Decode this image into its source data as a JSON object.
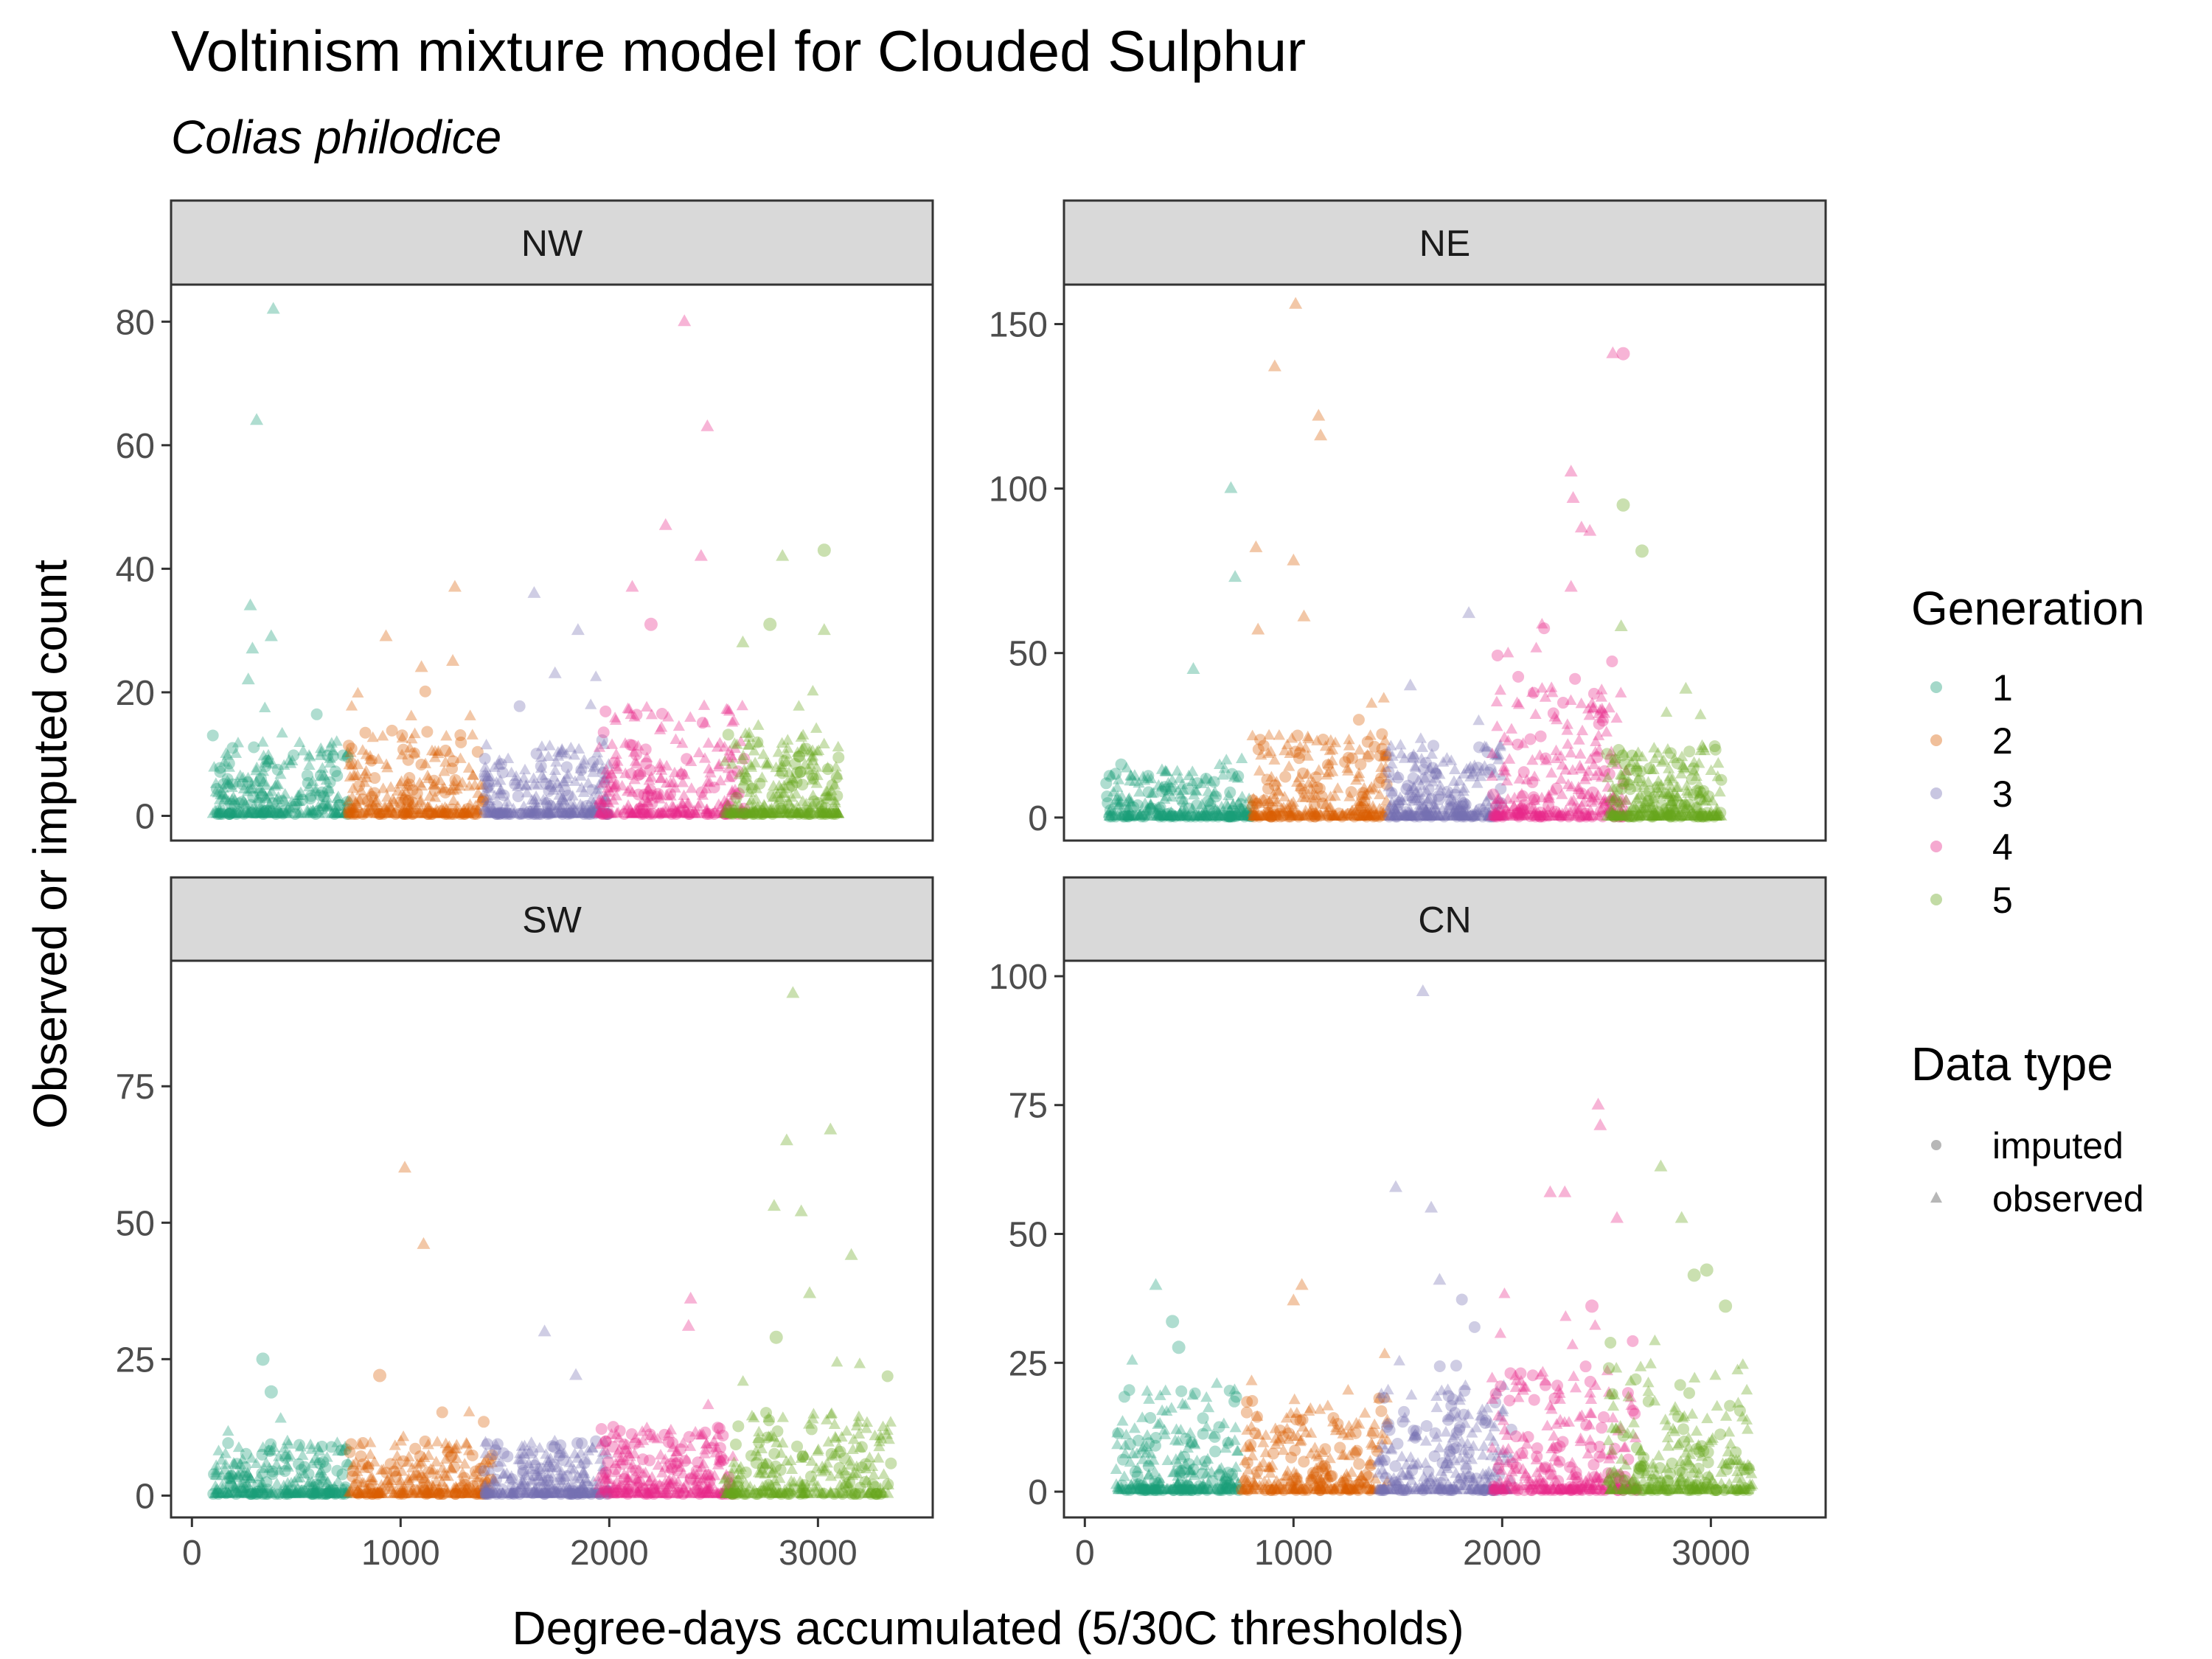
{
  "chart_data": {
    "type": "scatter",
    "title": "Voltinism mixture model for Clouded Sulphur",
    "subtitle": "Colias philodice",
    "xlabel": "Degree-days accumulated (5/30C thresholds)",
    "ylabel": "Observed or imputed count",
    "xlim": [
      -100,
      3550
    ],
    "x_ticks": [
      0,
      1000,
      2000,
      3000
    ],
    "x_tick_labels": [
      "0",
      "1000",
      "2000",
      "3000"
    ],
    "grid": false,
    "legends": {
      "color": {
        "title": "Generation",
        "entries": [
          {
            "label": "1",
            "color": "#1b9e77"
          },
          {
            "label": "2",
            "color": "#d95f02"
          },
          {
            "label": "3",
            "color": "#7570b3"
          },
          {
            "label": "4",
            "color": "#e7298a"
          },
          {
            "label": "5",
            "color": "#66a61e"
          }
        ]
      },
      "shape": {
        "title": "Data type",
        "entries": [
          {
            "label": "imputed",
            "shape": "circle",
            "color": "#999999"
          },
          {
            "label": "observed",
            "shape": "triangle",
            "color": "#999999"
          }
        ]
      },
      "position": "right"
    },
    "panels": [
      {
        "label": "NW",
        "ylim": [
          -4,
          86
        ],
        "y_ticks": [
          0,
          20,
          40,
          60,
          80
        ],
        "y_tick_labels": [
          "0",
          "20",
          "40",
          "60",
          "80"
        ],
        "generations": [
          {
            "gen": 1,
            "x_range": [
              100,
              750
            ],
            "typical_max": 12
          },
          {
            "gen": 2,
            "x_range": [
              750,
              1400
            ],
            "typical_max": 14
          },
          {
            "gen": 3,
            "x_range": [
              1400,
              2000
            ],
            "typical_max": 12
          },
          {
            "gen": 4,
            "x_range": [
              1950,
              2650
            ],
            "typical_max": 18
          },
          {
            "gen": 5,
            "x_range": [
              2550,
              3100
            ],
            "typical_max": 14
          }
        ],
        "points": [
          {
            "x": 390,
            "y": 82,
            "gen": 1,
            "type": "observed"
          },
          {
            "x": 310,
            "y": 64,
            "gen": 1,
            "type": "observed"
          },
          {
            "x": 280,
            "y": 34,
            "gen": 1,
            "type": "observed"
          },
          {
            "x": 380,
            "y": 29,
            "gen": 1,
            "type": "observed"
          },
          {
            "x": 290,
            "y": 27,
            "gen": 1,
            "type": "observed"
          },
          {
            "x": 270,
            "y": 22,
            "gen": 1,
            "type": "observed"
          },
          {
            "x": 930,
            "y": 29,
            "gen": 2,
            "type": "observed"
          },
          {
            "x": 1260,
            "y": 37,
            "gen": 2,
            "type": "observed"
          },
          {
            "x": 1250,
            "y": 25,
            "gen": 2,
            "type": "observed"
          },
          {
            "x": 1100,
            "y": 24,
            "gen": 2,
            "type": "observed"
          },
          {
            "x": 1640,
            "y": 36,
            "gen": 3,
            "type": "observed"
          },
          {
            "x": 1850,
            "y": 30,
            "gen": 3,
            "type": "observed"
          },
          {
            "x": 1740,
            "y": 23,
            "gen": 3,
            "type": "observed"
          },
          {
            "x": 2360,
            "y": 80,
            "gen": 4,
            "type": "observed"
          },
          {
            "x": 2470,
            "y": 63,
            "gen": 4,
            "type": "observed"
          },
          {
            "x": 2270,
            "y": 47,
            "gen": 4,
            "type": "observed"
          },
          {
            "x": 2110,
            "y": 37,
            "gen": 4,
            "type": "observed"
          },
          {
            "x": 2440,
            "y": 42,
            "gen": 4,
            "type": "observed"
          },
          {
            "x": 2200,
            "y": 31,
            "gen": 4,
            "type": "imputed"
          },
          {
            "x": 3030,
            "y": 43,
            "gen": 5,
            "type": "imputed"
          },
          {
            "x": 2830,
            "y": 42,
            "gen": 5,
            "type": "observed"
          },
          {
            "x": 3030,
            "y": 30,
            "gen": 5,
            "type": "observed"
          },
          {
            "x": 2770,
            "y": 31,
            "gen": 5,
            "type": "imputed"
          },
          {
            "x": 2640,
            "y": 28,
            "gen": 5,
            "type": "observed"
          }
        ]
      },
      {
        "label": "NE",
        "ylim": [
          -7,
          162
        ],
        "y_ticks": [
          0,
          50,
          100,
          150
        ],
        "y_tick_labels": [
          "0",
          "50",
          "100",
          "150"
        ],
        "generations": [
          {
            "gen": 1,
            "x_range": [
              100,
              800
            ],
            "typical_max": 15
          },
          {
            "gen": 2,
            "x_range": [
              800,
              1450
            ],
            "typical_max": 25
          },
          {
            "gen": 3,
            "x_range": [
              1450,
              2000
            ],
            "typical_max": 22
          },
          {
            "gen": 4,
            "x_range": [
              1950,
              2600
            ],
            "typical_max": 40
          },
          {
            "gen": 5,
            "x_range": [
              2500,
              3050
            ],
            "typical_max": 22
          }
        ],
        "points": [
          {
            "x": 700,
            "y": 100,
            "gen": 1,
            "type": "observed"
          },
          {
            "x": 720,
            "y": 73,
            "gen": 1,
            "type": "observed"
          },
          {
            "x": 520,
            "y": 45,
            "gen": 1,
            "type": "observed"
          },
          {
            "x": 1010,
            "y": 156,
            "gen": 2,
            "type": "observed"
          },
          {
            "x": 910,
            "y": 137,
            "gen": 2,
            "type": "observed"
          },
          {
            "x": 1120,
            "y": 122,
            "gen": 2,
            "type": "observed"
          },
          {
            "x": 1130,
            "y": 116,
            "gen": 2,
            "type": "observed"
          },
          {
            "x": 820,
            "y": 82,
            "gen": 2,
            "type": "observed"
          },
          {
            "x": 1000,
            "y": 78,
            "gen": 2,
            "type": "observed"
          },
          {
            "x": 830,
            "y": 57,
            "gen": 2,
            "type": "observed"
          },
          {
            "x": 1050,
            "y": 61,
            "gen": 2,
            "type": "observed"
          },
          {
            "x": 1840,
            "y": 62,
            "gen": 3,
            "type": "observed"
          },
          {
            "x": 1560,
            "y": 40,
            "gen": 3,
            "type": "observed"
          },
          {
            "x": 2330,
            "y": 105,
            "gen": 4,
            "type": "observed"
          },
          {
            "x": 2340,
            "y": 97,
            "gen": 4,
            "type": "observed"
          },
          {
            "x": 2380,
            "y": 88,
            "gen": 4,
            "type": "observed"
          },
          {
            "x": 2420,
            "y": 87,
            "gen": 4,
            "type": "observed"
          },
          {
            "x": 2330,
            "y": 70,
            "gen": 4,
            "type": "observed"
          },
          {
            "x": 2530,
            "y": 141,
            "gen": 4,
            "type": "observed"
          },
          {
            "x": 2580,
            "y": 141,
            "gen": 4,
            "type": "imputed"
          },
          {
            "x": 2580,
            "y": 95,
            "gen": 5,
            "type": "imputed"
          },
          {
            "x": 2670,
            "y": 81,
            "gen": 5,
            "type": "imputed"
          },
          {
            "x": 2570,
            "y": 58,
            "gen": 5,
            "type": "observed"
          },
          {
            "x": 2880,
            "y": 39,
            "gen": 5,
            "type": "observed"
          }
        ]
      },
      {
        "label": "SW",
        "ylim": [
          -4,
          98
        ],
        "y_ticks": [
          0,
          25,
          50,
          75
        ],
        "y_tick_labels": [
          "0",
          "25",
          "50",
          "75"
        ],
        "generations": [
          {
            "gen": 1,
            "x_range": [
              100,
              750
            ],
            "typical_max": 10
          },
          {
            "gen": 2,
            "x_range": [
              750,
              1450
            ],
            "typical_max": 10
          },
          {
            "gen": 3,
            "x_range": [
              1400,
              2000
            ],
            "typical_max": 10
          },
          {
            "gen": 4,
            "x_range": [
              1950,
              2600
            ],
            "typical_max": 13
          },
          {
            "gen": 5,
            "x_range": [
              2550,
              3350
            ],
            "typical_max": 15
          }
        ],
        "points": [
          {
            "x": 340,
            "y": 25,
            "gen": 1,
            "type": "imputed"
          },
          {
            "x": 380,
            "y": 19,
            "gen": 1,
            "type": "imputed"
          },
          {
            "x": 1020,
            "y": 60,
            "gen": 2,
            "type": "observed"
          },
          {
            "x": 1110,
            "y": 46,
            "gen": 2,
            "type": "observed"
          },
          {
            "x": 900,
            "y": 22,
            "gen": 2,
            "type": "imputed"
          },
          {
            "x": 1690,
            "y": 30,
            "gen": 3,
            "type": "observed"
          },
          {
            "x": 1840,
            "y": 22,
            "gen": 3,
            "type": "observed"
          },
          {
            "x": 2390,
            "y": 36,
            "gen": 4,
            "type": "observed"
          },
          {
            "x": 2380,
            "y": 31,
            "gen": 4,
            "type": "observed"
          },
          {
            "x": 2880,
            "y": 92,
            "gen": 5,
            "type": "observed"
          },
          {
            "x": 3060,
            "y": 67,
            "gen": 5,
            "type": "observed"
          },
          {
            "x": 2850,
            "y": 65,
            "gen": 5,
            "type": "observed"
          },
          {
            "x": 2790,
            "y": 53,
            "gen": 5,
            "type": "observed"
          },
          {
            "x": 2920,
            "y": 52,
            "gen": 5,
            "type": "observed"
          },
          {
            "x": 3160,
            "y": 44,
            "gen": 5,
            "type": "observed"
          },
          {
            "x": 2960,
            "y": 37,
            "gen": 5,
            "type": "observed"
          },
          {
            "x": 2800,
            "y": 29,
            "gen": 5,
            "type": "imputed"
          }
        ]
      },
      {
        "label": "CN",
        "ylim": [
          -5,
          103
        ],
        "y_ticks": [
          0,
          25,
          50,
          75,
          100
        ],
        "y_tick_labels": [
          "0",
          "25",
          "50",
          "75",
          "100"
        ],
        "generations": [
          {
            "gen": 1,
            "x_range": [
              150,
              750
            ],
            "typical_max": 20
          },
          {
            "gen": 2,
            "x_range": [
              750,
              1450
            ],
            "typical_max": 18
          },
          {
            "gen": 3,
            "x_range": [
              1400,
              2050
            ],
            "typical_max": 20
          },
          {
            "gen": 4,
            "x_range": [
              1950,
              2650
            ],
            "typical_max": 25
          },
          {
            "gen": 5,
            "x_range": [
              2500,
              3200
            ],
            "typical_max": 25
          }
        ],
        "points": [
          {
            "x": 340,
            "y": 40,
            "gen": 1,
            "type": "observed"
          },
          {
            "x": 420,
            "y": 33,
            "gen": 1,
            "type": "imputed"
          },
          {
            "x": 450,
            "y": 28,
            "gen": 1,
            "type": "imputed"
          },
          {
            "x": 1040,
            "y": 40,
            "gen": 2,
            "type": "observed"
          },
          {
            "x": 1000,
            "y": 37,
            "gen": 2,
            "type": "observed"
          },
          {
            "x": 1620,
            "y": 97,
            "gen": 3,
            "type": "observed"
          },
          {
            "x": 1490,
            "y": 59,
            "gen": 3,
            "type": "observed"
          },
          {
            "x": 1660,
            "y": 55,
            "gen": 3,
            "type": "observed"
          },
          {
            "x": 1700,
            "y": 41,
            "gen": 3,
            "type": "observed"
          },
          {
            "x": 2460,
            "y": 75,
            "gen": 4,
            "type": "observed"
          },
          {
            "x": 2470,
            "y": 71,
            "gen": 4,
            "type": "observed"
          },
          {
            "x": 2230,
            "y": 58,
            "gen": 4,
            "type": "observed"
          },
          {
            "x": 2300,
            "y": 58,
            "gen": 4,
            "type": "observed"
          },
          {
            "x": 2550,
            "y": 53,
            "gen": 4,
            "type": "observed"
          },
          {
            "x": 2430,
            "y": 36,
            "gen": 4,
            "type": "imputed"
          },
          {
            "x": 2760,
            "y": 63,
            "gen": 5,
            "type": "observed"
          },
          {
            "x": 2860,
            "y": 53,
            "gen": 5,
            "type": "observed"
          },
          {
            "x": 2980,
            "y": 43,
            "gen": 5,
            "type": "imputed"
          },
          {
            "x": 2920,
            "y": 42,
            "gen": 5,
            "type": "imputed"
          },
          {
            "x": 3070,
            "y": 36,
            "gen": 5,
            "type": "imputed"
          }
        ]
      }
    ]
  }
}
